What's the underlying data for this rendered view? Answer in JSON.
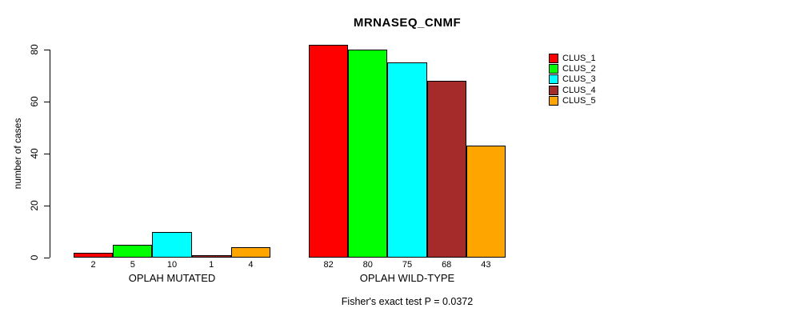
{
  "title": "MRNASEQ_CNMF",
  "footnote": "Fisher's exact test P = 0.0372",
  "chart_data": {
    "type": "bar",
    "title": "MRNASEQ_CNMF",
    "ylabel": "number of cases",
    "xlabel": "",
    "ylim": [
      0,
      80
    ],
    "yticks": [
      0,
      20,
      40,
      60,
      80
    ],
    "grid": false,
    "legend_position": "top-right",
    "background_color": "#ffffff",
    "bar_border_color": "#000000",
    "series": [
      {
        "name": "CLUS_1",
        "color": "#ff0000"
      },
      {
        "name": "CLUS_2",
        "color": "#00ff00"
      },
      {
        "name": "CLUS_3",
        "color": "#00ffff"
      },
      {
        "name": "CLUS_4",
        "color": "#a52a2a"
      },
      {
        "name": "CLUS_5",
        "color": "#ffa500"
      }
    ],
    "groups": [
      {
        "label": "OPLAH MUTATED",
        "values": [
          2,
          5,
          10,
          1,
          4
        ],
        "value_labels": [
          "2",
          "5",
          "10",
          "1",
          "4"
        ]
      },
      {
        "label": "OPLAH WILD-TYPE",
        "values": [
          82,
          80,
          75,
          68,
          43
        ],
        "value_labels": [
          "82",
          "80",
          "75",
          "68",
          "43"
        ]
      }
    ],
    "annotation": "Fisher's exact test P = 0.0372"
  }
}
